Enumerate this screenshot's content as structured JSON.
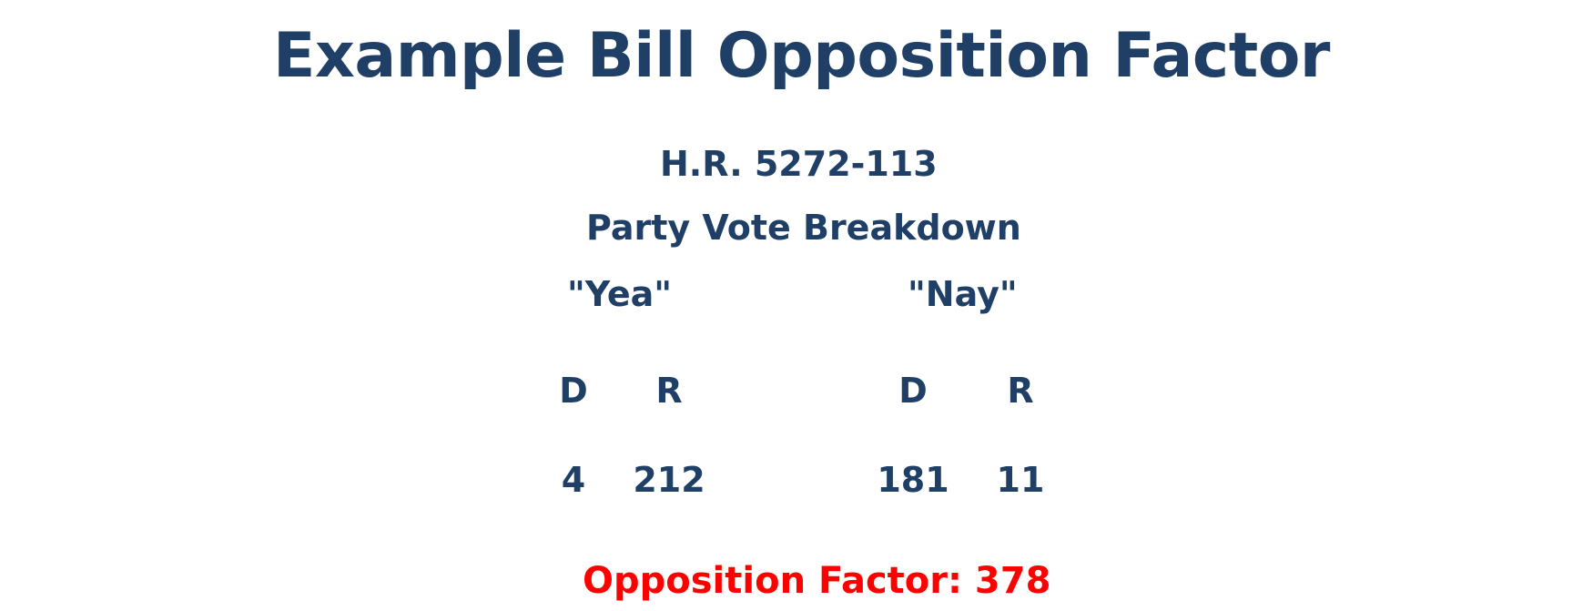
{
  "title": "Example Bill Opposition Factor",
  "bill_id": "H.R. 5272-113",
  "subtitle": "Party Vote Breakdown",
  "yea": {
    "label": "\"Yea\"",
    "d_label": "D",
    "r_label": "R",
    "d_count": "4",
    "r_count": "212"
  },
  "nay": {
    "label": "\"Nay\"",
    "d_label": "D",
    "r_label": "R",
    "d_count": "181",
    "r_count": "11"
  },
  "opposition_factor": "Opposition Factor: 378",
  "colors": {
    "text": "#1f3f66",
    "highlight": "#ff0000"
  }
}
